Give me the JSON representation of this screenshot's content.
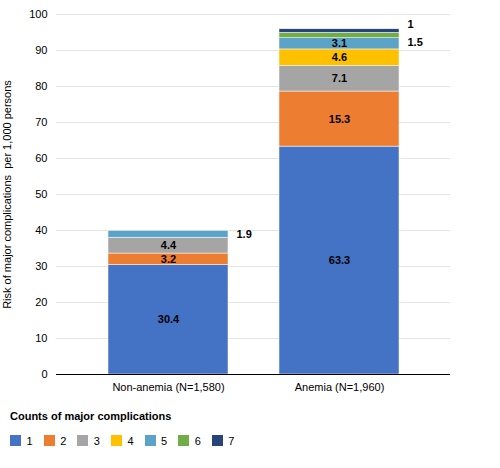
{
  "chart_data": {
    "type": "bar",
    "stacked": true,
    "categories": [
      "Non-anemia (N=1,580)",
      "Anemia (N=1,960)"
    ],
    "series": [
      {
        "name": "1",
        "color": "#4472C4",
        "values": [
          30.4,
          63.3
        ]
      },
      {
        "name": "2",
        "color": "#ED7D31",
        "values": [
          3.2,
          15.3
        ]
      },
      {
        "name": "3",
        "color": "#A5A5A5",
        "values": [
          4.4,
          7.1
        ]
      },
      {
        "name": "4",
        "color": "#FFC000",
        "values": [
          0.0,
          4.6
        ]
      },
      {
        "name": "5",
        "color": "#5BA3C9",
        "values": [
          1.9,
          3.1
        ]
      },
      {
        "name": "6",
        "color": "#70AD47",
        "values": [
          0.0,
          1.5
        ]
      },
      {
        "name": "7",
        "color": "#264478",
        "values": [
          0.0,
          1.0
        ]
      }
    ],
    "ylabel": "Risk of major complications  per 1,000 persons",
    "legend_title": "Counts of major complications",
    "legend": "bottom",
    "ylim": [
      0,
      100
    ],
    "yticks": [
      0,
      10,
      20,
      30,
      40,
      50,
      60,
      70,
      80,
      90,
      100
    ],
    "grid": true,
    "data_labels": true
  }
}
